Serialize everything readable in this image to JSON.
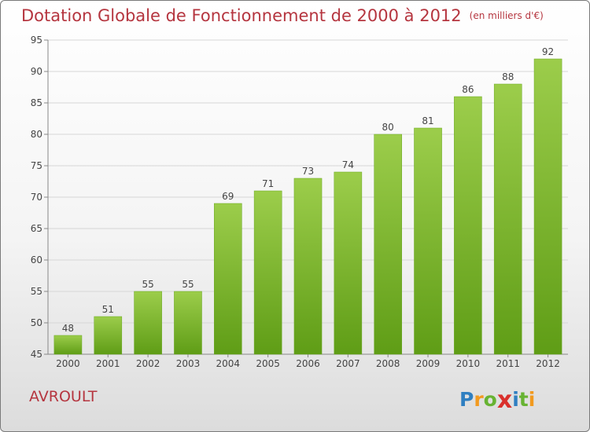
{
  "chart_data": {
    "type": "bar",
    "title": "Dotation Globale de Fonctionnement de 2000 à 2012",
    "subtitle": "(en milliers d'€)",
    "categories": [
      "2000",
      "2001",
      "2002",
      "2003",
      "2004",
      "2005",
      "2006",
      "2007",
      "2008",
      "2009",
      "2010",
      "2011",
      "2012"
    ],
    "values": [
      48,
      51,
      55,
      55,
      69,
      71,
      73,
      74,
      80,
      81,
      86,
      88,
      92
    ],
    "ylim": [
      45,
      95
    ],
    "yticks": [
      45,
      50,
      55,
      60,
      65,
      70,
      75,
      80,
      85,
      90,
      95
    ],
    "grid": "horizontal",
    "bar_color": "#7db73a",
    "label_color": "#b5353f"
  },
  "commune": "AVROULT",
  "logo": {
    "letters": [
      "P",
      "r",
      "o",
      "x",
      "i",
      "t",
      "i"
    ],
    "colors": [
      "#2f7fc1",
      "#f29a1f",
      "#67b332",
      "#d9302c",
      "#2f7fc1",
      "#67b332",
      "#f29a1f"
    ]
  }
}
